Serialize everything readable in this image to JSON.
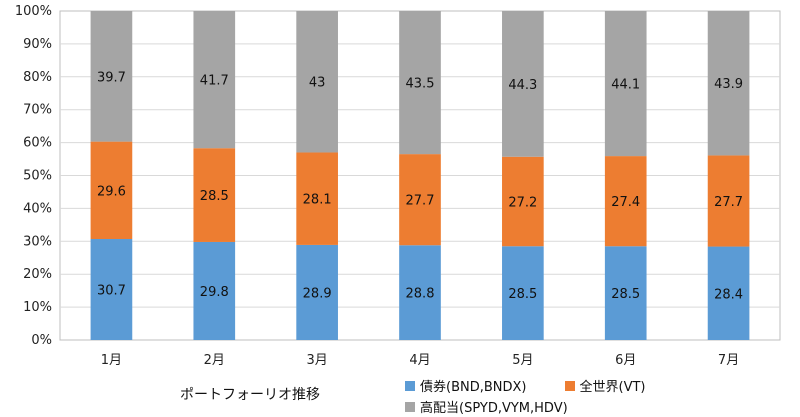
{
  "caption": "ポートフォーリオ推移",
  "chart_data": {
    "type": "bar",
    "stacked": true,
    "percent_scale": true,
    "categories": [
      "1月",
      "2月",
      "3月",
      "4月",
      "5月",
      "6月",
      "7月"
    ],
    "series": [
      {
        "name": "債券(BND,BNDX)",
        "color": "#5b9bd5",
        "values": [
          30.7,
          29.8,
          28.9,
          28.8,
          28.5,
          28.5,
          28.4
        ]
      },
      {
        "name": "全世界(VT)",
        "color": "#ed7d31",
        "values": [
          29.6,
          28.5,
          28.1,
          27.7,
          27.2,
          27.4,
          27.7
        ]
      },
      {
        "name": "高配当(SPYD,VYM,HDV)",
        "color": "#a5a5a5",
        "values": [
          39.7,
          41.7,
          43,
          43.5,
          44.3,
          44.1,
          43.9
        ]
      }
    ],
    "y_ticks": [
      "0%",
      "10%",
      "20%",
      "30%",
      "40%",
      "50%",
      "60%",
      "70%",
      "80%",
      "90%",
      "100%"
    ],
    "ylim": [
      0,
      100
    ],
    "legend_position": "bottom"
  }
}
